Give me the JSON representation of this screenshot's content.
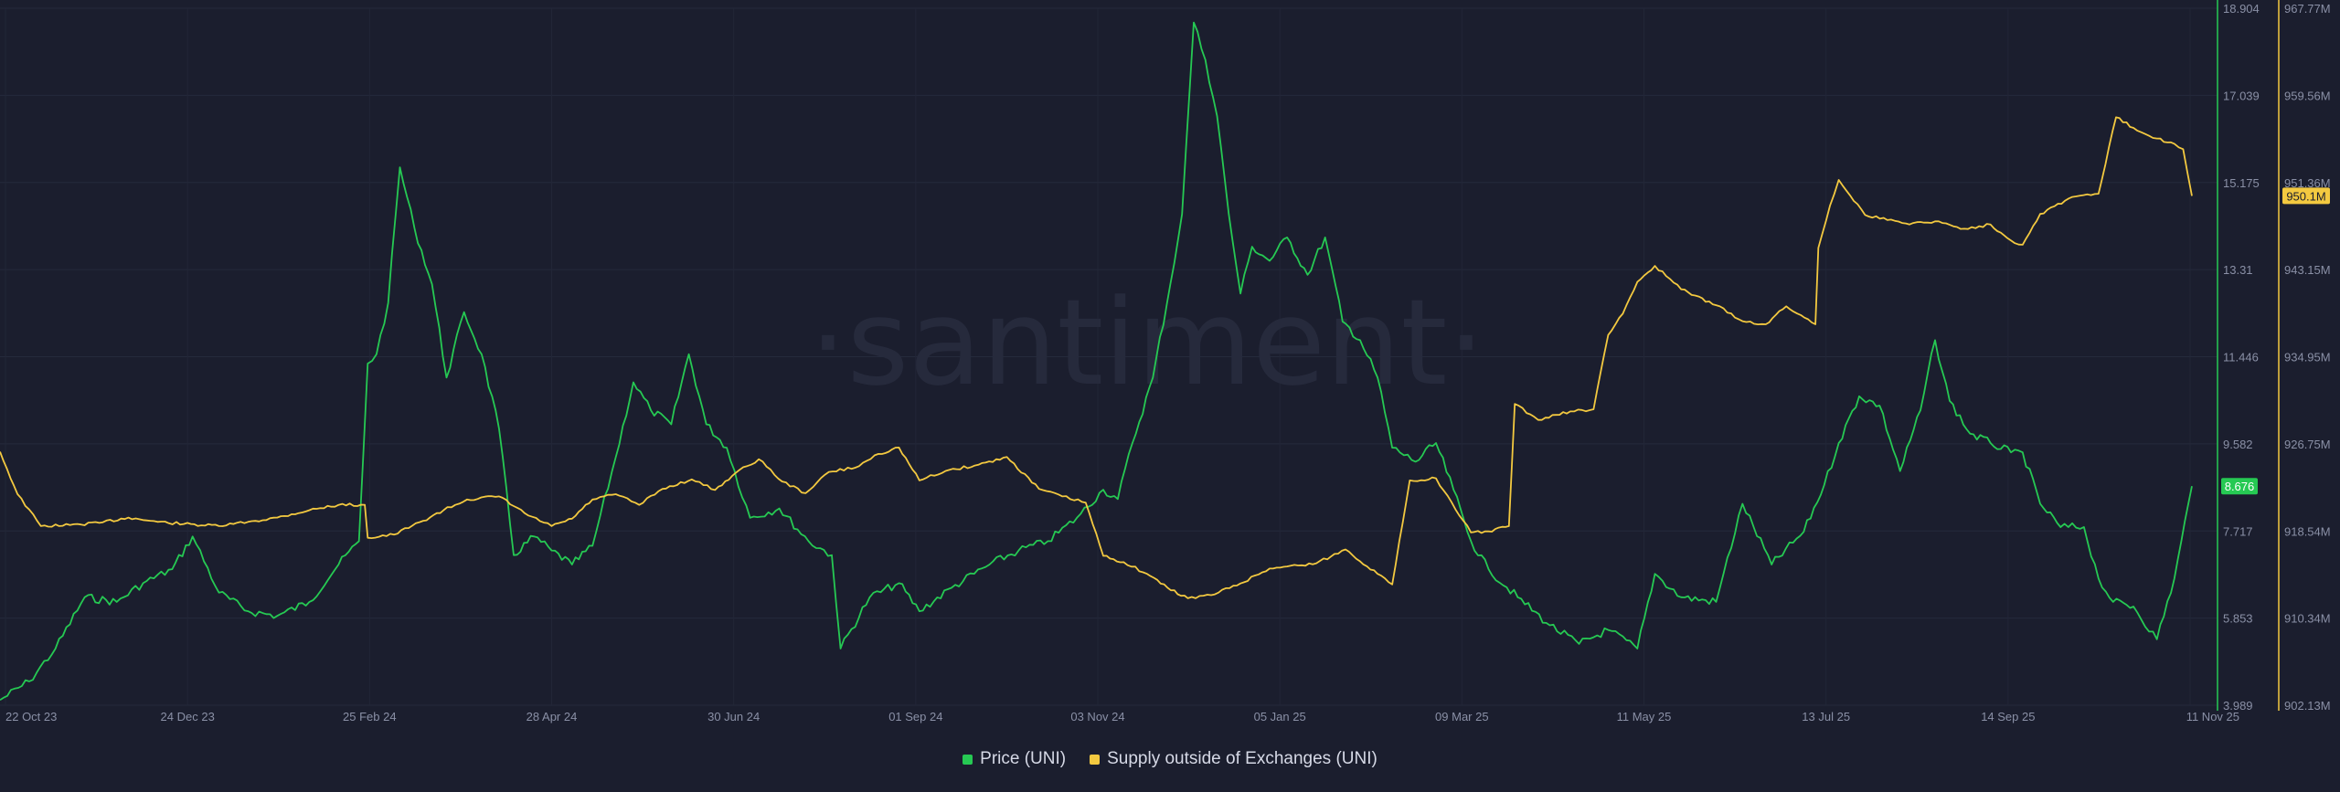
{
  "watermark": "·santiment·",
  "chart_data": {
    "type": "line",
    "x_axis": {
      "start": "22 Oct 23",
      "end": "11 Nov 25",
      "tick_labels": [
        "22 Oct 23",
        "24 Dec 23",
        "25 Feb 24",
        "28 Apr 24",
        "30 Jun 24",
        "01 Sep 24",
        "03 Nov 24",
        "05 Jan 25",
        "09 Mar 25",
        "11 May 25",
        "13 Jul 25",
        "14 Sep 25",
        "11 Nov 25"
      ]
    },
    "y_axis_left": {
      "series": "Price (UNI)",
      "range": [
        3.989,
        18.904
      ],
      "tick_labels": [
        "18.904",
        "17.039",
        "15.175",
        "13.31",
        "11.446",
        "9.582",
        "7.717",
        "5.853",
        "3.989"
      ],
      "current_value_label": "8.676",
      "current_value": 8.676
    },
    "y_axis_right": {
      "series": "Supply outside of Exchanges (UNI)",
      "range": [
        902.13,
        967.77
      ],
      "unit": "M",
      "tick_labels": [
        "967.77M",
        "959.56M",
        "951.36M",
        "943.15M",
        "934.95M",
        "926.75M",
        "918.54M",
        "910.34M",
        "902.13M"
      ],
      "current_value_label": "950.1M",
      "current_value": 950.1
    },
    "grid": true,
    "legend_position": "bottom-center",
    "series": [
      {
        "name": "Price (UNI)",
        "color": "#26c953",
        "axis": "left",
        "points": [
          [
            "22 Oct 23",
            4.1
          ],
          [
            "01 Nov 23",
            4.5
          ],
          [
            "10 Nov 23",
            5.2
          ],
          [
            "20 Nov 23",
            6.3
          ],
          [
            "01 Dec 23",
            6.2
          ],
          [
            "10 Dec 23",
            6.6
          ],
          [
            "20 Dec 23",
            6.9
          ],
          [
            "27 Dec 23",
            7.6
          ],
          [
            "05 Jan 24",
            6.4
          ],
          [
            "15 Jan 24",
            6.0
          ],
          [
            "25 Jan 24",
            5.9
          ],
          [
            "05 Feb 24",
            6.2
          ],
          [
            "15 Feb 24",
            7.0
          ],
          [
            "22 Feb 24",
            7.5
          ],
          [
            "25 Feb 24",
            11.3
          ],
          [
            "28 Feb 24",
            11.5
          ],
          [
            "03 Mar 24",
            12.6
          ],
          [
            "07 Mar 24",
            15.5
          ],
          [
            "12 Mar 24",
            14.2
          ],
          [
            "18 Mar 24",
            13.0
          ],
          [
            "23 Mar 24",
            11.0
          ],
          [
            "29 Mar 24",
            12.4
          ],
          [
            "04 Apr 24",
            11.5
          ],
          [
            "10 Apr 24",
            9.9
          ],
          [
            "15 Apr 24",
            7.2
          ],
          [
            "22 Apr 24",
            7.6
          ],
          [
            "28 Apr 24",
            7.3
          ],
          [
            "05 May 24",
            7.0
          ],
          [
            "12 May 24",
            7.4
          ],
          [
            "20 May 24",
            9.3
          ],
          [
            "26 May 24",
            10.9
          ],
          [
            "01 Jun 24",
            10.3
          ],
          [
            "08 Jun 24",
            10.0
          ],
          [
            "14 Jun 24",
            11.5
          ],
          [
            "20 Jun 24",
            10.0
          ],
          [
            "27 Jun 24",
            9.5
          ],
          [
            "05 Jul 24",
            8.0
          ],
          [
            "15 Jul 24",
            8.2
          ],
          [
            "25 Jul 24",
            7.5
          ],
          [
            "02 Aug 24",
            7.2
          ],
          [
            "05 Aug 24",
            5.2
          ],
          [
            "15 Aug 24",
            6.3
          ],
          [
            "25 Aug 24",
            6.6
          ],
          [
            "01 Sep 24",
            6.0
          ],
          [
            "12 Sep 24",
            6.5
          ],
          [
            "25 Sep 24",
            7.0
          ],
          [
            "05 Oct 24",
            7.3
          ],
          [
            "15 Oct 24",
            7.5
          ],
          [
            "25 Oct 24",
            8.0
          ],
          [
            "03 Nov 24",
            8.6
          ],
          [
            "08 Nov 24",
            8.4
          ],
          [
            "13 Nov 24",
            9.6
          ],
          [
            "20 Nov 24",
            11.0
          ],
          [
            "26 Nov 24",
            13.0
          ],
          [
            "30 Nov 24",
            14.5
          ],
          [
            "04 Dec 24",
            18.6
          ],
          [
            "08 Dec 24",
            17.8
          ],
          [
            "12 Dec 24",
            16.6
          ],
          [
            "16 Dec 24",
            14.5
          ],
          [
            "20 Dec 24",
            12.8
          ],
          [
            "24 Dec 24",
            13.8
          ],
          [
            "30 Dec 24",
            13.5
          ],
          [
            "05 Jan 25",
            14.0
          ],
          [
            "12 Jan 25",
            13.2
          ],
          [
            "18 Jan 25",
            14.0
          ],
          [
            "24 Jan 25",
            12.2
          ],
          [
            "30 Jan 25",
            11.8
          ],
          [
            "05 Feb 25",
            11.0
          ],
          [
            "10 Feb 25",
            9.5
          ],
          [
            "18 Feb 25",
            9.2
          ],
          [
            "25 Feb 25",
            9.6
          ],
          [
            "03 Mar 25",
            8.6
          ],
          [
            "09 Mar 25",
            7.5
          ],
          [
            "15 Mar 25",
            6.9
          ],
          [
            "25 Mar 25",
            6.3
          ],
          [
            "05 Apr 25",
            5.7
          ],
          [
            "15 Apr 25",
            5.3
          ],
          [
            "25 Apr 25",
            5.6
          ],
          [
            "05 May 25",
            5.2
          ],
          [
            "11 May 25",
            6.8
          ],
          [
            "20 May 25",
            6.3
          ],
          [
            "01 Jun 25",
            6.2
          ],
          [
            "10 Jun 25",
            8.3
          ],
          [
            "20 Jun 25",
            7.0
          ],
          [
            "01 Jul 25",
            7.7
          ],
          [
            "08 Jul 25",
            8.7
          ],
          [
            "13 Jul 25",
            9.6
          ],
          [
            "20 Jul 25",
            10.6
          ],
          [
            "27 Jul 25",
            10.4
          ],
          [
            "03 Aug 25",
            9.0
          ],
          [
            "10 Aug 25",
            10.3
          ],
          [
            "15 Aug 25",
            11.8
          ],
          [
            "20 Aug 25",
            10.5
          ],
          [
            "27 Aug 25",
            9.8
          ],
          [
            "03 Sep 25",
            9.6
          ],
          [
            "10 Sep 25",
            9.4
          ],
          [
            "14 Sep 25",
            9.4
          ],
          [
            "20 Sep 25",
            8.3
          ],
          [
            "27 Sep 25",
            7.8
          ],
          [
            "05 Oct 25",
            7.8
          ],
          [
            "10 Oct 25",
            6.7
          ],
          [
            "15 Oct 25",
            6.2
          ],
          [
            "22 Oct 25",
            6.1
          ],
          [
            "30 Oct 25",
            5.4
          ],
          [
            "05 Nov 25",
            6.7
          ],
          [
            "11 Nov 25",
            8.676
          ]
        ]
      },
      {
        "name": "Supply outside of Exchanges (UNI)",
        "color": "#f3c940",
        "axis": "right",
        "points": [
          [
            "22 Oct 23",
            926.0
          ],
          [
            "28 Oct 23",
            922.0
          ],
          [
            "05 Nov 23",
            919.0
          ],
          [
            "15 Nov 23",
            919.1
          ],
          [
            "25 Nov 23",
            919.3
          ],
          [
            "05 Dec 23",
            919.8
          ],
          [
            "15 Dec 23",
            919.4
          ],
          [
            "24 Dec 23",
            919.2
          ],
          [
            "05 Jan 24",
            919.0
          ],
          [
            "15 Jan 24",
            919.4
          ],
          [
            "25 Jan 24",
            919.8
          ],
          [
            "05 Feb 24",
            920.5
          ],
          [
            "15 Feb 24",
            921.0
          ],
          [
            "24 Feb 24",
            921.0
          ],
          [
            "25 Feb 24",
            917.9
          ],
          [
            "05 Mar 24",
            918.2
          ],
          [
            "15 Mar 24",
            919.5
          ],
          [
            "22 Mar 24",
            920.5
          ],
          [
            "30 Mar 24",
            921.5
          ],
          [
            "10 Apr 24",
            921.8
          ],
          [
            "20 Apr 24",
            920.0
          ],
          [
            "28 Apr 24",
            919.0
          ],
          [
            "05 May 24",
            919.7
          ],
          [
            "12 May 24",
            921.5
          ],
          [
            "20 May 24",
            922.0
          ],
          [
            "28 May 24",
            921.0
          ],
          [
            "05 Jun 24",
            922.5
          ],
          [
            "15 Jun 24",
            923.4
          ],
          [
            "23 Jun 24",
            922.4
          ],
          [
            "30 Jun 24",
            924.0
          ],
          [
            "08 Jul 24",
            925.3
          ],
          [
            "16 Jul 24",
            923.2
          ],
          [
            "24 Jul 24",
            922.1
          ],
          [
            "01 Aug 24",
            924.1
          ],
          [
            "10 Aug 24",
            924.5
          ],
          [
            "18 Aug 24",
            925.8
          ],
          [
            "25 Aug 24",
            926.4
          ],
          [
            "01 Sep 24",
            923.3
          ],
          [
            "10 Sep 24",
            924.2
          ],
          [
            "20 Sep 24",
            924.7
          ],
          [
            "01 Oct 24",
            925.5
          ],
          [
            "12 Oct 24",
            922.5
          ],
          [
            "20 Oct 24",
            921.8
          ],
          [
            "28 Oct 24",
            921.2
          ],
          [
            "03 Nov 24",
            916.2
          ],
          [
            "10 Nov 24",
            915.6
          ],
          [
            "18 Nov 24",
            914.5
          ],
          [
            "25 Nov 24",
            913.2
          ],
          [
            "02 Dec 24",
            912.2
          ],
          [
            "10 Dec 24",
            912.5
          ],
          [
            "20 Dec 24",
            913.6
          ],
          [
            "30 Dec 24",
            915.0
          ],
          [
            "05 Jan 25",
            915.2
          ],
          [
            "15 Jan 25",
            915.5
          ],
          [
            "25 Jan 25",
            916.8
          ],
          [
            "05 Feb 25",
            914.5
          ],
          [
            "10 Feb 25",
            913.5
          ],
          [
            "16 Feb 25",
            923.3
          ],
          [
            "25 Feb 25",
            923.5
          ],
          [
            "05 Mar 25",
            920.0
          ],
          [
            "09 Mar 25",
            918.4
          ],
          [
            "15 Mar 25",
            918.5
          ],
          [
            "22 Mar 25",
            919.0
          ],
          [
            "24 Mar 25",
            930.5
          ],
          [
            "01 Apr 25",
            929.0
          ],
          [
            "12 Apr 25",
            929.8
          ],
          [
            "20 Apr 25",
            930.0
          ],
          [
            "25 Apr 25",
            937.0
          ],
          [
            "30 Apr 25",
            939.0
          ],
          [
            "05 May 25",
            942.0
          ],
          [
            "11 May 25",
            943.5
          ],
          [
            "20 May 25",
            941.3
          ],
          [
            "01 Jun 25",
            939.8
          ],
          [
            "10 Jun 25",
            938.3
          ],
          [
            "18 Jun 25",
            938.0
          ],
          [
            "25 Jun 25",
            939.7
          ],
          [
            "05 Jul 25",
            938.0
          ],
          [
            "06 Jul 25",
            945.2
          ],
          [
            "10 Jul 25",
            949.2
          ],
          [
            "13 Jul 25",
            951.6
          ],
          [
            "22 Jul 25",
            948.3
          ],
          [
            "05 Aug 25",
            947.5
          ],
          [
            "15 Aug 25",
            947.7
          ],
          [
            "25 Aug 25",
            947.0
          ],
          [
            "03 Sep 25",
            947.4
          ],
          [
            "10 Sep 25",
            945.9
          ],
          [
            "14 Sep 25",
            945.5
          ],
          [
            "20 Sep 25",
            948.4
          ],
          [
            "01 Oct 25",
            950.0
          ],
          [
            "10 Oct 25",
            950.3
          ],
          [
            "16 Oct 25",
            957.5
          ],
          [
            "22 Oct 25",
            956.5
          ],
          [
            "30 Oct 25",
            955.5
          ],
          [
            "05 Nov 25",
            955.0
          ],
          [
            "08 Nov 25",
            954.5
          ],
          [
            "11 Nov 25",
            950.1
          ]
        ]
      }
    ]
  }
}
